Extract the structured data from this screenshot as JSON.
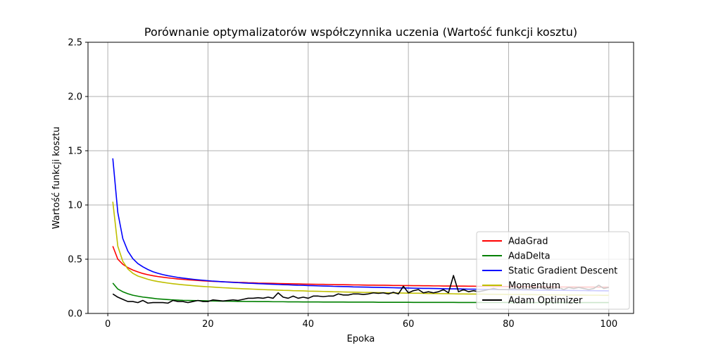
{
  "chart_data": {
    "type": "line",
    "title": "Porównanie optymalizatorów współczynnika uczenia (Wartość funkcji kosztu)",
    "xlabel": "Epoka",
    "ylabel": "Wartość funkcji kosztu",
    "xlim": [
      -3.95,
      104.95
    ],
    "ylim": [
      0,
      2.5
    ],
    "xticks": [
      0,
      20,
      40,
      60,
      80,
      100
    ],
    "xtick_labels": [
      "0",
      "20",
      "40",
      "60",
      "80",
      "100"
    ],
    "yticks": [
      0.0,
      0.5,
      1.0,
      1.5,
      2.0,
      2.5
    ],
    "ytick_labels": [
      "0.0",
      "0.5",
      "1.0",
      "1.5",
      "2.0",
      "2.5"
    ],
    "grid": true,
    "legend_position": "lower-right",
    "legend_alpha": 0.8,
    "x": [
      1,
      2,
      3,
      4,
      5,
      6,
      7,
      8,
      9,
      10,
      11,
      12,
      13,
      14,
      15,
      16,
      17,
      18,
      19,
      20,
      21,
      22,
      23,
      24,
      25,
      26,
      27,
      28,
      29,
      30,
      31,
      32,
      33,
      34,
      35,
      36,
      37,
      38,
      39,
      40,
      41,
      42,
      43,
      44,
      45,
      46,
      47,
      48,
      49,
      50,
      51,
      52,
      53,
      54,
      55,
      56,
      57,
      58,
      59,
      60,
      61,
      62,
      63,
      64,
      65,
      66,
      67,
      68,
      69,
      70,
      71,
      72,
      73,
      74,
      75,
      76,
      77,
      78,
      79,
      80,
      81,
      82,
      83,
      84,
      85,
      86,
      87,
      88,
      89,
      90,
      91,
      92,
      93,
      94,
      95,
      96,
      97,
      98,
      99,
      100
    ],
    "series": [
      {
        "name": "AdaGrad",
        "color": "#ff0000",
        "values": [
          0.62,
          0.5,
          0.453,
          0.423,
          0.4,
          0.383,
          0.368,
          0.357,
          0.348,
          0.34,
          0.334,
          0.328,
          0.323,
          0.318,
          0.314,
          0.31,
          0.307,
          0.304,
          0.301,
          0.298,
          0.296,
          0.294,
          0.292,
          0.29,
          0.288,
          0.286,
          0.285,
          0.283,
          0.282,
          0.28,
          0.279,
          0.278,
          0.277,
          0.276,
          0.275,
          0.274,
          0.273,
          0.272,
          0.271,
          0.27,
          0.269,
          0.268,
          0.268,
          0.267,
          0.266,
          0.265,
          0.265,
          0.264,
          0.263,
          0.263,
          0.262,
          0.261,
          0.261,
          0.26,
          0.26,
          0.259,
          0.258,
          0.258,
          0.257,
          0.257,
          0.256,
          0.256,
          0.255,
          0.255,
          0.254,
          0.254,
          0.253,
          0.253,
          0.252,
          0.252,
          0.252,
          0.251,
          0.251,
          0.25,
          0.25,
          0.25,
          0.249,
          0.249,
          0.248,
          0.248,
          0.248,
          0.247,
          0.247,
          0.247,
          0.246,
          0.246,
          0.246,
          0.245,
          0.245,
          0.245,
          0.244,
          0.244,
          0.244,
          0.243,
          0.243,
          0.243,
          0.243,
          0.242,
          0.242,
          0.242
        ]
      },
      {
        "name": "AdaDelta",
        "color": "#008000",
        "values": [
          0.28,
          0.225,
          0.2,
          0.182,
          0.168,
          0.159,
          0.151,
          0.146,
          0.14,
          0.134,
          0.131,
          0.128,
          0.125,
          0.123,
          0.121,
          0.12,
          0.119,
          0.118,
          0.117,
          0.116,
          0.115,
          0.114,
          0.113,
          0.113,
          0.112,
          0.111,
          0.111,
          0.11,
          0.11,
          0.109,
          0.109,
          0.109,
          0.108,
          0.108,
          0.108,
          0.107,
          0.107,
          0.107,
          0.106,
          0.106,
          0.106,
          0.106,
          0.105,
          0.105,
          0.105,
          0.105,
          0.105,
          0.104,
          0.104,
          0.104,
          0.104,
          0.104,
          0.104,
          0.103,
          0.103,
          0.103,
          0.103,
          0.103,
          0.103,
          0.103,
          0.102,
          0.102,
          0.102,
          0.102,
          0.102,
          0.102,
          0.102,
          0.102,
          0.102,
          0.101,
          0.101,
          0.101,
          0.101,
          0.101,
          0.101,
          0.101,
          0.101,
          0.101,
          0.101,
          0.101,
          0.1,
          0.1,
          0.1,
          0.1,
          0.1,
          0.1,
          0.1,
          0.1,
          0.1,
          0.1,
          0.1,
          0.1,
          0.1,
          0.1,
          0.1,
          0.1,
          0.1,
          0.1,
          0.1,
          0.1
        ]
      },
      {
        "name": "Static Gradient Descent",
        "color": "#0000ff",
        "values": [
          1.43,
          0.93,
          0.69,
          0.575,
          0.505,
          0.46,
          0.43,
          0.405,
          0.385,
          0.37,
          0.358,
          0.348,
          0.34,
          0.332,
          0.326,
          0.32,
          0.315,
          0.31,
          0.306,
          0.302,
          0.298,
          0.295,
          0.292,
          0.289,
          0.286,
          0.284,
          0.281,
          0.279,
          0.277,
          0.275,
          0.273,
          0.271,
          0.269,
          0.267,
          0.265,
          0.264,
          0.262,
          0.26,
          0.259,
          0.257,
          0.256,
          0.254,
          0.253,
          0.252,
          0.25,
          0.249,
          0.248,
          0.247,
          0.245,
          0.244,
          0.243,
          0.242,
          0.241,
          0.24,
          0.239,
          0.238,
          0.237,
          0.236,
          0.235,
          0.234,
          0.233,
          0.232,
          0.231,
          0.231,
          0.23,
          0.229,
          0.228,
          0.227,
          0.227,
          0.226,
          0.225,
          0.224,
          0.224,
          0.223,
          0.222,
          0.222,
          0.221,
          0.22,
          0.22,
          0.219,
          0.218,
          0.218,
          0.217,
          0.217,
          0.216,
          0.215,
          0.215,
          0.214,
          0.214,
          0.213,
          0.213,
          0.212,
          0.212,
          0.211,
          0.211,
          0.21,
          0.21,
          0.209,
          0.209,
          0.208
        ]
      },
      {
        "name": "Momentum",
        "color": "#bfbf00",
        "values": [
          1.03,
          0.62,
          0.48,
          0.41,
          0.37,
          0.345,
          0.33,
          0.315,
          0.303,
          0.294,
          0.287,
          0.28,
          0.274,
          0.269,
          0.264,
          0.26,
          0.256,
          0.252,
          0.249,
          0.246,
          0.243,
          0.24,
          0.237,
          0.235,
          0.232,
          0.23,
          0.228,
          0.226,
          0.224,
          0.222,
          0.22,
          0.218,
          0.217,
          0.215,
          0.213,
          0.212,
          0.21,
          0.209,
          0.208,
          0.206,
          0.205,
          0.204,
          0.203,
          0.202,
          0.2,
          0.199,
          0.198,
          0.197,
          0.196,
          0.195,
          0.194,
          0.194,
          0.193,
          0.192,
          0.191,
          0.19,
          0.189,
          0.189,
          0.188,
          0.187,
          0.186,
          0.186,
          0.185,
          0.184,
          0.184,
          0.183,
          0.182,
          0.182,
          0.181,
          0.18,
          0.18,
          0.179,
          0.179,
          0.178,
          0.178,
          0.177,
          0.177,
          0.176,
          0.176,
          0.175,
          0.175,
          0.174,
          0.174,
          0.173,
          0.173,
          0.172,
          0.172,
          0.171,
          0.171,
          0.171,
          0.17,
          0.17,
          0.169,
          0.169,
          0.169,
          0.168,
          0.168,
          0.168,
          0.167,
          0.167
        ]
      },
      {
        "name": "Adam Optimizer",
        "color": "#000000",
        "values": [
          0.18,
          0.15,
          0.13,
          0.11,
          0.11,
          0.1,
          0.12,
          0.095,
          0.1,
          0.1,
          0.1,
          0.095,
          0.12,
          0.11,
          0.11,
          0.1,
          0.11,
          0.12,
          0.11,
          0.11,
          0.125,
          0.12,
          0.115,
          0.12,
          0.125,
          0.12,
          0.13,
          0.14,
          0.14,
          0.145,
          0.14,
          0.15,
          0.14,
          0.19,
          0.15,
          0.14,
          0.16,
          0.14,
          0.15,
          0.14,
          0.16,
          0.16,
          0.155,
          0.16,
          0.16,
          0.18,
          0.17,
          0.17,
          0.18,
          0.18,
          0.175,
          0.18,
          0.19,
          0.185,
          0.19,
          0.18,
          0.195,
          0.18,
          0.25,
          0.19,
          0.21,
          0.22,
          0.19,
          0.2,
          0.19,
          0.2,
          0.22,
          0.19,
          0.35,
          0.2,
          0.22,
          0.2,
          0.21,
          0.2,
          0.21,
          0.22,
          0.23,
          0.22,
          0.22,
          0.22,
          0.23,
          0.22,
          0.23,
          0.22,
          0.23,
          0.24,
          0.23,
          0.22,
          0.23,
          0.24,
          0.22,
          0.24,
          0.23,
          0.24,
          0.23,
          0.22,
          0.23,
          0.26,
          0.23,
          0.24
        ]
      }
    ]
  }
}
